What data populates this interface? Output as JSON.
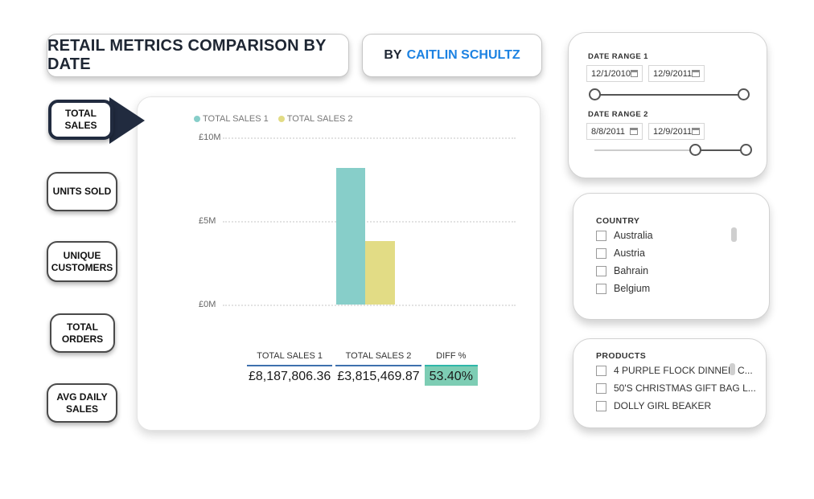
{
  "header": {
    "title": "RETAIL METRICS COMPARISON BY DATE",
    "byline_prefix": "BY",
    "byline_name": "CAITLIN SCHULTZ"
  },
  "sidebar": {
    "items": [
      {
        "label": "TOTAL SALES",
        "active": true
      },
      {
        "label": "UNITS SOLD",
        "active": false
      },
      {
        "label": "UNIQUE CUSTOMERS",
        "active": false
      },
      {
        "label": "TOTAL ORDERS",
        "active": false
      },
      {
        "label": "AVG DAILY SALES",
        "active": false
      }
    ]
  },
  "chart_data": {
    "type": "bar",
    "series": [
      {
        "name": "TOTAL SALES 1",
        "value": 8187806.36,
        "color": "#87cec9"
      },
      {
        "name": "TOTAL SALES 2",
        "value": 3815469.87,
        "color": "#e2dc85"
      }
    ],
    "ylim": [
      0,
      10000000
    ],
    "yticks": [
      "£10M",
      "£5M",
      "£0M"
    ],
    "ylabel": "",
    "xlabel": "",
    "legend_position": "top-left",
    "grid": "horizontal-dotted"
  },
  "summary_table": {
    "columns": [
      "TOTAL SALES 1",
      "TOTAL SALES 2",
      "DIFF %"
    ],
    "values": [
      "£8,187,806.36",
      "£3,815,469.87",
      "53.40%"
    ]
  },
  "filters": {
    "date_range_1": {
      "label": "DATE RANGE 1",
      "start": "12/1/2010",
      "end": "12/9/2011"
    },
    "date_range_2": {
      "label": "DATE RANGE 2",
      "start": "8/8/2011",
      "end": "12/9/2011"
    },
    "country": {
      "label": "COUNTRY",
      "options": [
        "Australia",
        "Austria",
        "Bahrain",
        "Belgium"
      ]
    },
    "products": {
      "label": "PRODUCTS",
      "options": [
        "4 PURPLE FLOCK DINNER C...",
        "50'S CHRISTMAS GIFT BAG L...",
        "DOLLY GIRL BEAKER"
      ]
    }
  },
  "colors": {
    "accent_blue": "#1c82e2",
    "navy": "#212b3f",
    "series1_teal": "#87cec9",
    "series2_yellow": "#e2dc85",
    "diff_highlight": "#7dcdb4",
    "table_underline_blue": "#3e70ae",
    "table_underline_teal": "#2fb7aa"
  }
}
